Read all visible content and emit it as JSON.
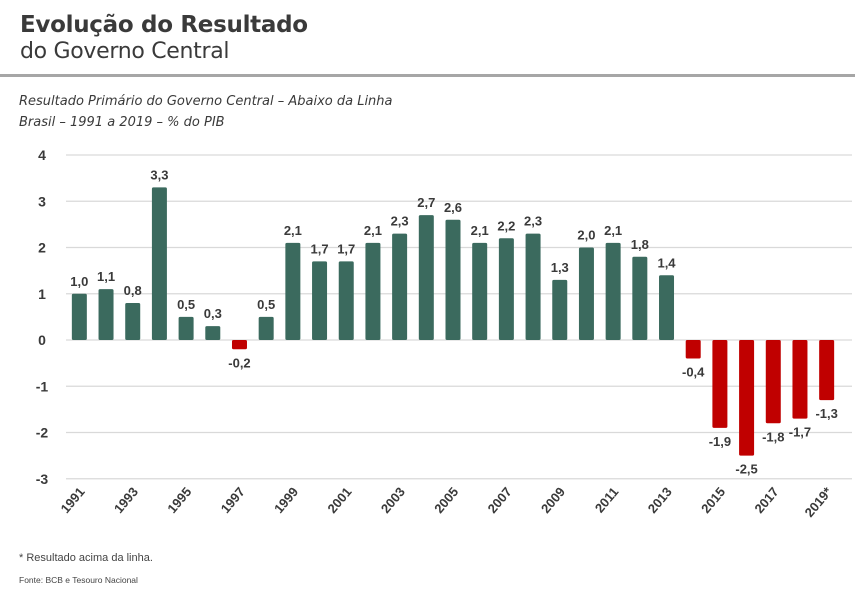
{
  "header": {
    "title_bold": "Evolução do Resultado",
    "title_light": "do Governo Central"
  },
  "subtitle": {
    "line1": "Resultado Primário do Governo Central – Abaixo da Linha",
    "line2": "Brasil – 1991 a 2019 – % do PIB"
  },
  "footer": {
    "note": "* Resultado acima da linha.",
    "source": "Fonte: BCB e Tesouro Nacional"
  },
  "colors": {
    "positive": "#3b6a5e",
    "negative": "#c00000",
    "grid": "#d9d9d9",
    "text": "#333333"
  },
  "chart_data": {
    "type": "bar",
    "title": "Resultado Primário do Governo Central – Abaixo da Linha",
    "subtitle": "Brasil – 1991 a 2019 – % do PIB",
    "xlabel": "",
    "ylabel": "% do PIB",
    "ylim": [
      -3,
      4
    ],
    "yticks": [
      4,
      3,
      2,
      1,
      0,
      -1,
      -2,
      -3
    ],
    "grid": true,
    "legend": "none",
    "categories": [
      "1991",
      "1992",
      "1993",
      "1994",
      "1995",
      "1996",
      "1997",
      "1998",
      "1999",
      "2000",
      "2001",
      "2002",
      "2003",
      "2004",
      "2005",
      "2006",
      "2007",
      "2008",
      "2009",
      "2010",
      "2011",
      "2012",
      "2013",
      "2014",
      "2015",
      "2016",
      "2017",
      "2018",
      "2019*"
    ],
    "xtick_labels": [
      "1991",
      "",
      "1993",
      "",
      "1995",
      "",
      "1997",
      "",
      "1999",
      "",
      "2001",
      "",
      "2003",
      "",
      "2005",
      "",
      "2007",
      "",
      "2009",
      "",
      "2011",
      "",
      "2013",
      "",
      "2015",
      "",
      "2017",
      "",
      "2019*"
    ],
    "values": [
      1.0,
      1.1,
      0.8,
      3.3,
      0.5,
      0.3,
      -0.2,
      0.5,
      2.1,
      1.7,
      1.7,
      2.1,
      2.3,
      2.7,
      2.6,
      2.1,
      2.2,
      2.3,
      1.3,
      2.0,
      2.1,
      1.8,
      1.4,
      -0.4,
      -1.9,
      -2.5,
      -1.8,
      -1.7,
      -1.3
    ],
    "data_labels": [
      "1,0",
      "1,1",
      "0,8",
      "3,3",
      "0,5",
      "0,3",
      "-0,2",
      "0,5",
      "2,1",
      "1,7",
      "1,7",
      "2,1",
      "2,3",
      "2,7",
      "2,6",
      "2,1",
      "2,2",
      "2,3",
      "1,3",
      "2,0",
      "2,1",
      "1,8",
      "1,4",
      "-0,4",
      "-1,9",
      "-2,5",
      "-1,8",
      "-1,7",
      "-1,3"
    ]
  }
}
